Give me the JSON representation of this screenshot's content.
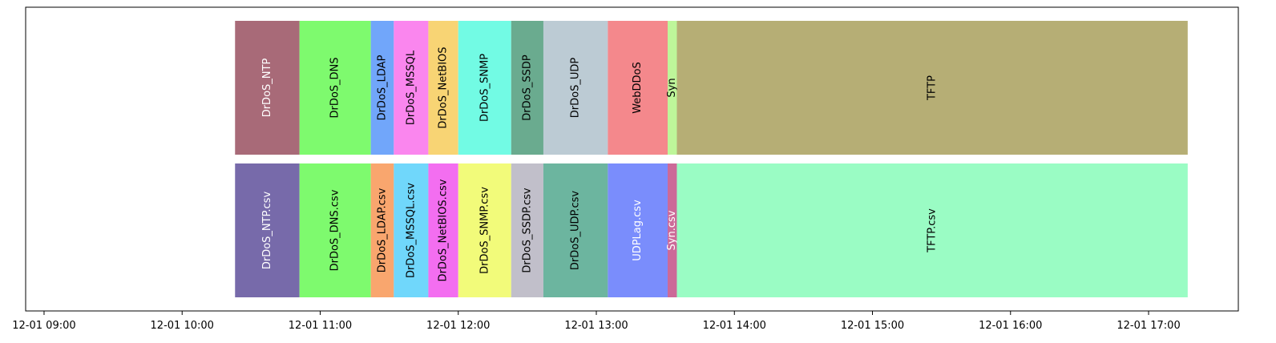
{
  "chart_data": {
    "type": "timeline",
    "x_axis": {
      "ticks": [
        "12-01 09:00",
        "12-01 10:00",
        "12-01 11:00",
        "12-01 12:00",
        "12-01 13:00",
        "12-01 14:00",
        "12-01 15:00",
        "12-01 16:00",
        "12-01 17:00"
      ],
      "range": [
        "12-01 08:52",
        "12-01 17:39"
      ]
    },
    "grid": false,
    "rows": [
      {
        "segments": [
          {
            "label": "DrDoS_NTP",
            "start": "10:23",
            "end": "10:51",
            "color": "#a86a78",
            "text_color": "#ffffff"
          },
          {
            "label": "DrDoS_DNS",
            "start": "10:51",
            "end": "11:22",
            "color": "#7efa6e",
            "text_color": "#000000"
          },
          {
            "label": "DrDoS_LDAP",
            "start": "11:22",
            "end": "11:32",
            "color": "#71a6fa",
            "text_color": "#000000"
          },
          {
            "label": "DrDoS_MSSQL",
            "start": "11:32",
            "end": "11:47",
            "color": "#fa86ee",
            "text_color": "#000000"
          },
          {
            "label": "DrDoS_NetBIOS",
            "start": "11:47",
            "end": "12:00",
            "color": "#f8d474",
            "text_color": "#000000"
          },
          {
            "label": "DrDoS_SNMP",
            "start": "12:00",
            "end": "12:23",
            "color": "#72fbe4",
            "text_color": "#000000"
          },
          {
            "label": "DrDoS_SSDP",
            "start": "12:23",
            "end": "12:37",
            "color": "#6aab8f",
            "text_color": "#000000"
          },
          {
            "label": "DrDoS_UDP",
            "start": "12:37",
            "end": "13:05",
            "color": "#bccbd4",
            "text_color": "#000000"
          },
          {
            "label": "WebDDoS",
            "start": "13:05",
            "end": "13:31",
            "color": "#f4888c",
            "text_color": "#000000"
          },
          {
            "label": "Syn",
            "start": "13:31",
            "end": "13:35",
            "color": "#bef69a",
            "text_color": "#000000"
          },
          {
            "label": "TFTP",
            "start": "13:35",
            "end": "17:17",
            "color": "#b6ae75",
            "text_color": "#000000"
          }
        ]
      },
      {
        "segments": [
          {
            "label": "DrDoS_NTP.csv",
            "start": "10:23",
            "end": "10:51",
            "color": "#776aaa",
            "text_color": "#ffffff"
          },
          {
            "label": "DrDoS_DNS.csv",
            "start": "10:51",
            "end": "11:22",
            "color": "#7efa6e",
            "text_color": "#000000"
          },
          {
            "label": "DrDoS_LDAP.csv",
            "start": "11:22",
            "end": "11:32",
            "color": "#f9a66e",
            "text_color": "#000000"
          },
          {
            "label": "DrDoS_MSSQL.csv",
            "start": "11:32",
            "end": "11:47",
            "color": "#70d7fb",
            "text_color": "#000000"
          },
          {
            "label": "DrDoS_NetBIOS.csv",
            "start": "11:47",
            "end": "12:00",
            "color": "#f36ef0",
            "text_color": "#000000"
          },
          {
            "label": "DrDoS_SNMP.csv",
            "start": "12:00",
            "end": "12:23",
            "color": "#f2fb7a",
            "text_color": "#000000"
          },
          {
            "label": "DrDoS_SSDP.csv",
            "start": "12:23",
            "end": "12:37",
            "color": "#c1bfca",
            "text_color": "#000000"
          },
          {
            "label": "DrDoS_UDP.csv",
            "start": "12:37",
            "end": "13:05",
            "color": "#6cb59f",
            "text_color": "#000000"
          },
          {
            "label": "UDPLag.csv",
            "start": "13:05",
            "end": "13:31",
            "color": "#7a8dfc",
            "text_color": "#ffffff"
          },
          {
            "label": "Syn.csv",
            "start": "13:31",
            "end": "13:35",
            "color": "#cc6a98",
            "text_color": "#ffffff"
          },
          {
            "label": "TFTP.csv",
            "start": "13:35",
            "end": "17:17",
            "color": "#9afcc4",
            "text_color": "#000000"
          }
        ]
      }
    ]
  }
}
